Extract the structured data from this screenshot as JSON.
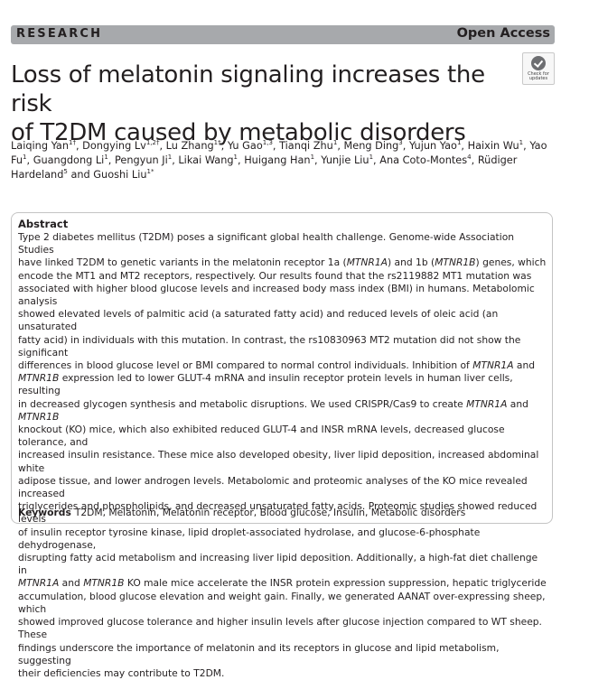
{
  "header": {
    "section": "RESEARCH",
    "access": "Open Access"
  },
  "badge": {
    "line1": "Check for",
    "line2": "updates"
  },
  "title": {
    "line1": "Loss of melatonin signaling increases the risk",
    "line2": "of T2DM caused by metabolic disorders"
  },
  "authors": [
    {
      "name": "Laiqing Yan",
      "aff": "1†"
    },
    {
      "name": "Dongying Lv",
      "aff": "1,2†"
    },
    {
      "name": "Lu Zhang",
      "aff": "1†"
    },
    {
      "name": "Yu Gao",
      "aff": "1,3"
    },
    {
      "name": "Tianqi Zhu",
      "aff": "1"
    },
    {
      "name": "Meng Ding",
      "aff": "3"
    },
    {
      "name": "Yujun Yao",
      "aff": "1"
    },
    {
      "name": "Haixin Wu",
      "aff": "1"
    },
    {
      "name": "Yao Fu",
      "aff": "1"
    },
    {
      "name": "Guangdong Li",
      "aff": "1"
    },
    {
      "name": "Pengyun Ji",
      "aff": "1"
    },
    {
      "name": "Likai Wang",
      "aff": "1"
    },
    {
      "name": "Huigang Han",
      "aff": "1"
    },
    {
      "name": "Yunjie Liu",
      "aff": "1"
    },
    {
      "name": "Ana Coto-Montes",
      "aff": "4"
    },
    {
      "name": "Rüdiger Hardeland",
      "aff": "5"
    },
    {
      "name": "Guoshi Liu",
      "aff": "1*"
    }
  ],
  "abstract": {
    "heading": "Abstract",
    "lines": [
      [
        {
          "t": "Type 2 diabetes mellitus (T2DM) poses a significant global health challenge. Genome-wide Association Studies"
        }
      ],
      [
        {
          "t": "have linked T2DM to genetic variants in the melatonin receptor 1a ("
        },
        {
          "t": "MTNR1A",
          "i": true
        },
        {
          "t": ") and 1b ("
        },
        {
          "t": "MTNR1B",
          "i": true
        },
        {
          "t": ") genes, which"
        }
      ],
      [
        {
          "t": "encode the MT1 and MT2 receptors, respectively. Our results found that the rs2119882 MT1 mutation was"
        }
      ],
      [
        {
          "t": "associated with higher blood glucose levels and increased body mass index (BMI) in humans. Metabolomic analysis"
        }
      ],
      [
        {
          "t": "showed elevated levels of palmitic acid (a saturated fatty acid) and reduced levels of oleic acid (an unsaturated"
        }
      ],
      [
        {
          "t": "fatty acid) in individuals with this mutation. In contrast, the rs10830963 MT2 mutation did not show the significant"
        }
      ],
      [
        {
          "t": "differences in blood glucose level or BMI compared to normal control individuals. Inhibition of "
        },
        {
          "t": "MTNR1A",
          "i": true
        },
        {
          "t": " and"
        }
      ],
      [
        {
          "t": "MTNR1B",
          "i": true
        },
        {
          "t": " expression led to lower GLUT-4 mRNA and insulin receptor protein levels in human liver cells, resulting"
        }
      ],
      [
        {
          "t": "in decreased glycogen synthesis and metabolic disruptions. We used CRISPR/Cas9 to create "
        },
        {
          "t": "MTNR1A",
          "i": true
        },
        {
          "t": " and "
        },
        {
          "t": "MTNR1B",
          "i": true
        }
      ],
      [
        {
          "t": "knockout (KO) mice, which also exhibited reduced GLUT-4 and INSR mRNA levels, decreased glucose tolerance, and"
        }
      ],
      [
        {
          "t": "increased insulin resistance. These mice also developed obesity, liver lipid deposition, increased abdominal white"
        }
      ],
      [
        {
          "t": "adipose tissue, and lower androgen levels. Metabolomic and proteomic analyses of the KO mice revealed increased"
        }
      ],
      [
        {
          "t": "triglycerides and phospholipids, and decreased unsaturated fatty acids. Proteomic studies showed reduced levels"
        }
      ],
      [
        {
          "t": "of insulin receptor tyrosine kinase, lipid droplet-associated hydrolase, and glucose-6-phosphate dehydrogenase,"
        }
      ],
      [
        {
          "t": "disrupting fatty acid metabolism and increasing liver lipid deposition. Additionally, a high-fat diet challenge in"
        }
      ],
      [
        {
          "t": "MTNR1A",
          "i": true
        },
        {
          "t": " and "
        },
        {
          "t": "MTNR1B",
          "i": true
        },
        {
          "t": " KO male mice accelerate the INSR protein expression suppression, hepatic triglyceride"
        }
      ],
      [
        {
          "t": "accumulation, blood glucose elevation and weight gain. Finally, we generated AANAT over-expressing sheep, which"
        }
      ],
      [
        {
          "t": "showed improved glucose tolerance and higher insulin levels after glucose injection compared to WT sheep. These"
        }
      ],
      [
        {
          "t": "findings underscore the importance of melatonin and its receptors in glucose and lipid metabolism, suggesting"
        }
      ],
      [
        {
          "t": "their deficiencies may contribute to T2DM."
        }
      ]
    ]
  },
  "keywords": {
    "label": "Keywords",
    "text": "T2DM, Melatonin, Melatonin receptor, Blood glucose, Insulin, Metabolic disorders"
  }
}
